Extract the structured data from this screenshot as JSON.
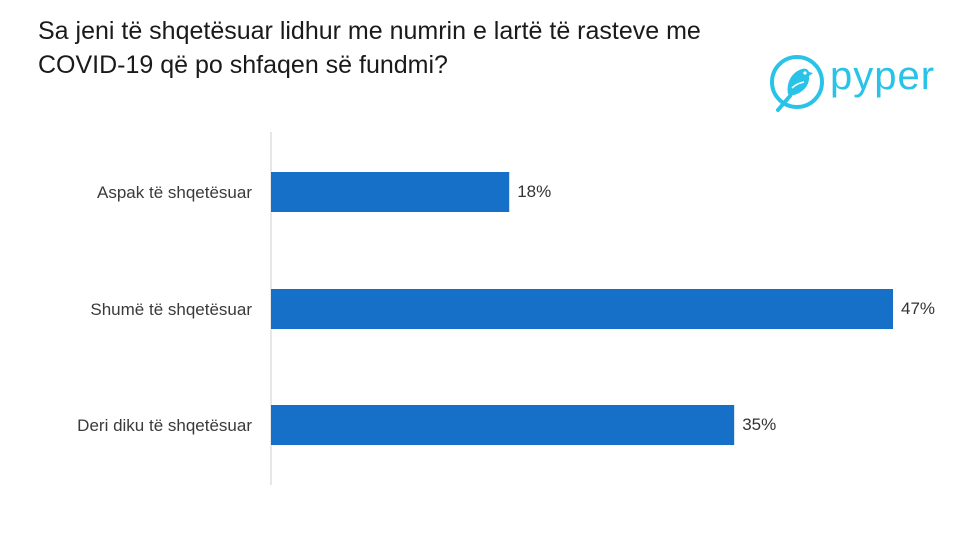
{
  "title": "Sa jeni të shqetësuar lidhur me numrin e lartë të rasteve me COVID-19 që po shfaqen së fundmi?",
  "logo": {
    "text": "pyper",
    "icon": "bird-icon",
    "color": "#29c3e8"
  },
  "chart_data": {
    "type": "bar",
    "orientation": "horizontal",
    "title": "Sa jeni të shqetësuar lidhur me numrin e lartë të rasteve me COVID-19 që po shfaqen së fundmi?",
    "categories": [
      "Aspak të shqetësuar",
      "Shumë të shqetësuar",
      "Deri diku të shqetësuar"
    ],
    "values": [
      18,
      47,
      35
    ],
    "value_labels": [
      "18%",
      "47%",
      "35%"
    ],
    "unit": "%",
    "xlim": [
      0,
      47
    ],
    "bar_color": "#1670c7",
    "grid": false,
    "xlabel": "",
    "ylabel": ""
  }
}
